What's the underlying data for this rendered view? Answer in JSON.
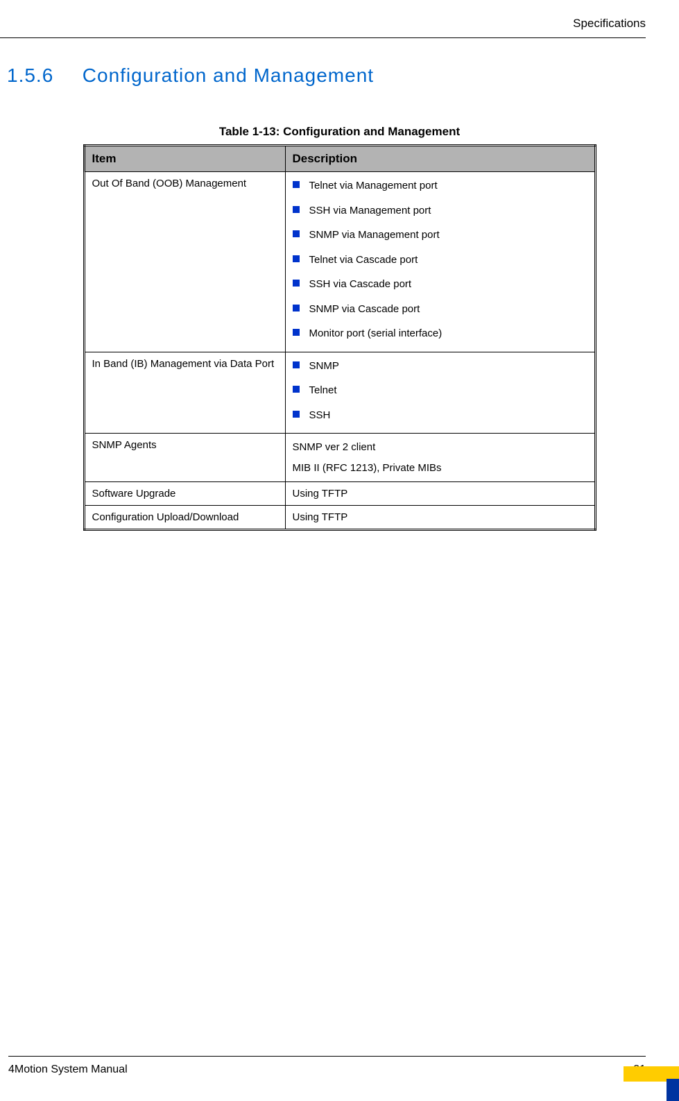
{
  "header": {
    "chapter": "Specifications"
  },
  "section": {
    "number": "1.5.6",
    "title": "Configuration and Management"
  },
  "table": {
    "caption": "Table 1-13: Configuration and Management",
    "columns": [
      "Item",
      "Description"
    ],
    "header_bg": "#b3b3b3",
    "bullet_color": "#0033cc",
    "rows": [
      {
        "item": "Out Of Band (OOB) Management",
        "type": "bullets",
        "values": [
          "Telnet via Management port",
          "SSH via Management port",
          "SNMP via Management port",
          "Telnet via Cascade port",
          "SSH via Cascade port",
          "SNMP via Cascade port",
          "Monitor port (serial interface)"
        ]
      },
      {
        "item": "In Band (IB) Management via Data Port",
        "type": "bullets",
        "values": [
          "SNMP",
          "Telnet",
          "SSH"
        ]
      },
      {
        "item": "SNMP Agents",
        "type": "lines",
        "values": [
          "SNMP ver 2 client",
          "MIB II (RFC 1213), Private MIBs"
        ]
      },
      {
        "item": "Software Upgrade",
        "type": "text",
        "values": [
          "Using TFTP"
        ]
      },
      {
        "item": "Configuration Upload/Download",
        "type": "text",
        "values": [
          "Using TFTP"
        ]
      }
    ]
  },
  "footer": {
    "manual": "4Motion System Manual",
    "page": "31",
    "decor_yellow": "#ffcc00",
    "decor_blue": "#0033a0"
  }
}
